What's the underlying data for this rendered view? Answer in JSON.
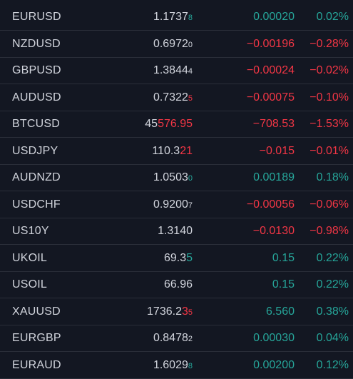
{
  "colors": {
    "background": "#131722",
    "text": "#d1d4dc",
    "positive": "#26a69a",
    "negative": "#f23645",
    "divider": "#2a2e39"
  },
  "rows": [
    {
      "symbol": "EURUSD",
      "last_base": "1.1737",
      "last_hl": "",
      "last_pip": "8",
      "change": "0.00020",
      "change_pct": "0.02%",
      "direction": "up"
    },
    {
      "symbol": "NZDUSD",
      "last_base": "0.6972",
      "last_hl": "",
      "last_pip": "0",
      "change": "−0.00196",
      "change_pct": "−0.28%",
      "direction": "down"
    },
    {
      "symbol": "GBPUSD",
      "last_base": "1.3844",
      "last_hl": "",
      "last_pip": "4",
      "change": "−0.00024",
      "change_pct": "−0.02%",
      "direction": "down"
    },
    {
      "symbol": "AUDUSD",
      "last_base": "0.7322",
      "last_hl": "",
      "last_pip": "5",
      "change": "−0.00075",
      "change_pct": "−0.10%",
      "direction": "down"
    },
    {
      "symbol": "BTCUSD",
      "last_base": "45",
      "last_hl": "576.95",
      "last_pip": "",
      "change": "−708.53",
      "change_pct": "−1.53%",
      "direction": "down"
    },
    {
      "symbol": "USDJPY",
      "last_base": "110.3",
      "last_hl": "21",
      "last_pip": "",
      "change": "−0.015",
      "change_pct": "−0.01%",
      "direction": "down"
    },
    {
      "symbol": "AUDNZD",
      "last_base": "1.0503",
      "last_hl": "",
      "last_pip": "0",
      "change": "0.00189",
      "change_pct": "0.18%",
      "direction": "up"
    },
    {
      "symbol": "USDCHF",
      "last_base": "0.9200",
      "last_hl": "",
      "last_pip": "7",
      "change": "−0.00056",
      "change_pct": "−0.06%",
      "direction": "down"
    },
    {
      "symbol": "US10Y",
      "last_base": "1.3140",
      "last_hl": "",
      "last_pip": "",
      "change": "−0.0130",
      "change_pct": "−0.98%",
      "direction": "down"
    },
    {
      "symbol": "UKOIL",
      "last_base": "69.3",
      "last_hl": "5",
      "last_pip": "",
      "change": "0.15",
      "change_pct": "0.22%",
      "direction": "up"
    },
    {
      "symbol": "USOIL",
      "last_base": "66.96",
      "last_hl": "",
      "last_pip": "",
      "change": "0.15",
      "change_pct": "0.22%",
      "direction": "up"
    },
    {
      "symbol": "XAUUSD",
      "last_base": "1736.2",
      "last_hl": "3",
      "last_pip": "5",
      "change": "6.560",
      "change_pct": "0.38%",
      "direction": "up",
      "hl_direction": "down"
    },
    {
      "symbol": "EURGBP",
      "last_base": "0.8478",
      "last_hl": "",
      "last_pip": "2",
      "change": "0.00030",
      "change_pct": "0.04%",
      "direction": "up",
      "pip_neutral": true
    },
    {
      "symbol": "EURAUD",
      "last_base": "1.6029",
      "last_hl": "",
      "last_pip": "8",
      "change": "0.00200",
      "change_pct": "0.12%",
      "direction": "up"
    }
  ]
}
